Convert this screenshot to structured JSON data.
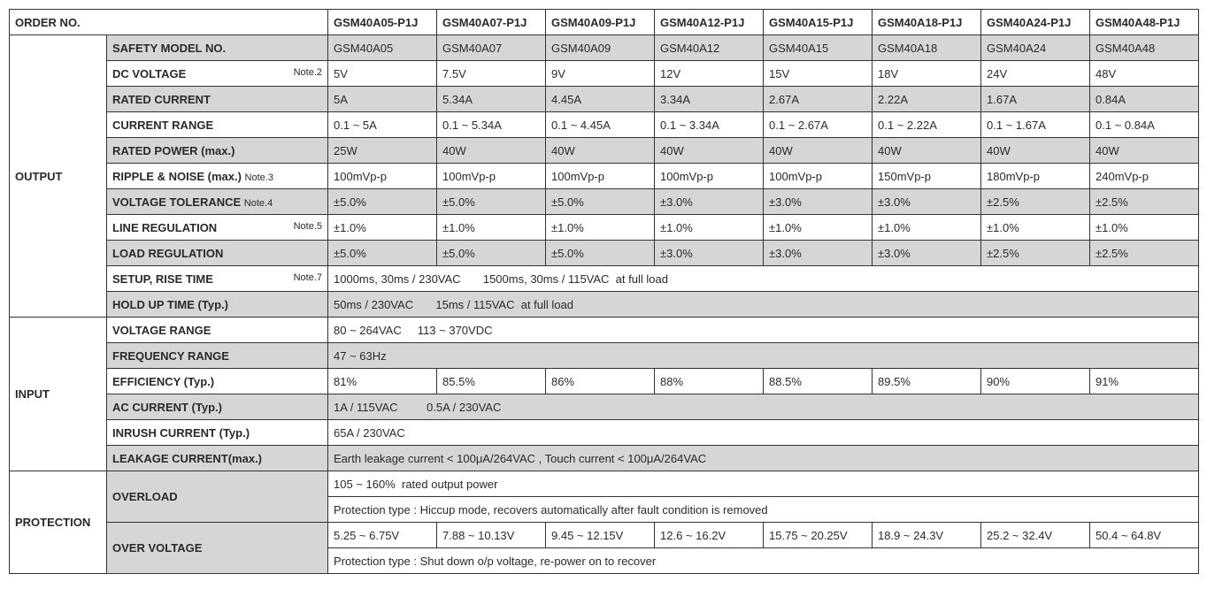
{
  "header": {
    "order_no": "ORDER NO.",
    "models": [
      "GSM40A05-P1J",
      "GSM40A07-P1J",
      "GSM40A09-P1J",
      "GSM40A12-P1J",
      "GSM40A15-P1J",
      "GSM40A18-P1J",
      "GSM40A24-P1J",
      "GSM40A48-P1J"
    ]
  },
  "sections": {
    "output": "OUTPUT",
    "input": "INPUT",
    "protection": "PROTECTION"
  },
  "rows": {
    "safety_model": {
      "label": "SAFETY MODEL NO.",
      "vals": [
        "GSM40A05",
        "GSM40A07",
        "GSM40A09",
        "GSM40A12",
        "GSM40A15",
        "GSM40A18",
        "GSM40A24",
        "GSM40A48"
      ]
    },
    "dc_voltage": {
      "label": "DC VOLTAGE",
      "note": "Note.2",
      "vals": [
        "5V",
        "7.5V",
        "9V",
        "12V",
        "15V",
        "18V",
        "24V",
        "48V"
      ]
    },
    "rated_current": {
      "label": "RATED CURRENT",
      "vals": [
        "5A",
        "5.34A",
        "4.45A",
        "3.34A",
        "2.67A",
        "2.22A",
        "1.67A",
        "0.84A"
      ]
    },
    "current_range": {
      "label": "CURRENT RANGE",
      "vals": [
        "0.1 ~ 5A",
        "0.1 ~ 5.34A",
        "0.1 ~ 4.45A",
        "0.1 ~ 3.34A",
        "0.1 ~ 2.67A",
        "0.1 ~ 2.22A",
        "0.1 ~ 1.67A",
        "0.1 ~ 0.84A"
      ]
    },
    "rated_power": {
      "label": "RATED POWER (max.)",
      "vals": [
        "25W",
        "40W",
        "40W",
        "40W",
        "40W",
        "40W",
        "40W",
        "40W"
      ]
    },
    "ripple_noise": {
      "label": "RIPPLE & NOISE (max.)",
      "note": "Note.3",
      "vals": [
        "100mVp-p",
        "100mVp-p",
        "100mVp-p",
        "100mVp-p",
        "100mVp-p",
        "150mVp-p",
        "180mVp-p",
        "240mVp-p"
      ]
    },
    "voltage_tol": {
      "label": "VOLTAGE TOLERANCE",
      "note": "Note.4",
      "vals": [
        "±5.0%",
        "±5.0%",
        "±5.0%",
        "±3.0%",
        "±3.0%",
        "±3.0%",
        "±2.5%",
        "±2.5%"
      ]
    },
    "line_reg": {
      "label": "LINE REGULATION",
      "note": "Note.5",
      "vals": [
        "±1.0%",
        "±1.0%",
        "±1.0%",
        "±1.0%",
        "±1.0%",
        "±1.0%",
        "±1.0%",
        "±1.0%"
      ]
    },
    "load_reg": {
      "label": "LOAD REGULATION",
      "vals": [
        "±5.0%",
        "±5.0%",
        "±5.0%",
        "±3.0%",
        "±3.0%",
        "±3.0%",
        "±2.5%",
        "±2.5%"
      ]
    },
    "setup_rise": {
      "label": "SETUP, RISE TIME",
      "note": "Note.7",
      "full": "1000ms, 30ms / 230VAC       1500ms, 30ms / 115VAC  at full load"
    },
    "holdup": {
      "label": "HOLD UP TIME (Typ.)",
      "full": "50ms / 230VAC       15ms / 115VAC  at full load"
    },
    "volt_range": {
      "label": "VOLTAGE RANGE",
      "full": "80 ~ 264VAC     113 ~ 370VDC"
    },
    "freq_range": {
      "label": "FREQUENCY RANGE",
      "full": "47 ~ 63Hz"
    },
    "efficiency": {
      "label": "EFFICIENCY (Typ.)",
      "vals": [
        "81%",
        "85.5%",
        "86%",
        "88%",
        "88.5%",
        "89.5%",
        "90%",
        "91%"
      ]
    },
    "ac_current": {
      "label": "AC CURRENT (Typ.)",
      "full": "1A / 115VAC         0.5A / 230VAC"
    },
    "inrush": {
      "label": "INRUSH CURRENT (Typ.)",
      "full": "65A / 230VAC"
    },
    "leakage": {
      "label": "LEAKAGE CURRENT(max.)",
      "full": "Earth leakage current < 100μA/264VAC , Touch current < 100μA/264VAC"
    },
    "overload": {
      "label": "OVERLOAD",
      "full1": "105 ~ 160%  rated output power",
      "full2": "Protection type : Hiccup mode, recovers automatically after fault condition is removed"
    },
    "overvoltage": {
      "label": "OVER VOLTAGE",
      "vals": [
        "5.25 ~ 6.75V",
        "7.88 ~ 10.13V",
        "9.45 ~ 12.15V",
        "12.6 ~ 16.2V",
        "15.75 ~ 20.25V",
        "18.9 ~ 24.3V",
        "25.2 ~ 32.4V",
        "50.4 ~ 64.8V"
      ],
      "full": "Protection type : Shut down o/p voltage, re-power on to recover"
    }
  }
}
